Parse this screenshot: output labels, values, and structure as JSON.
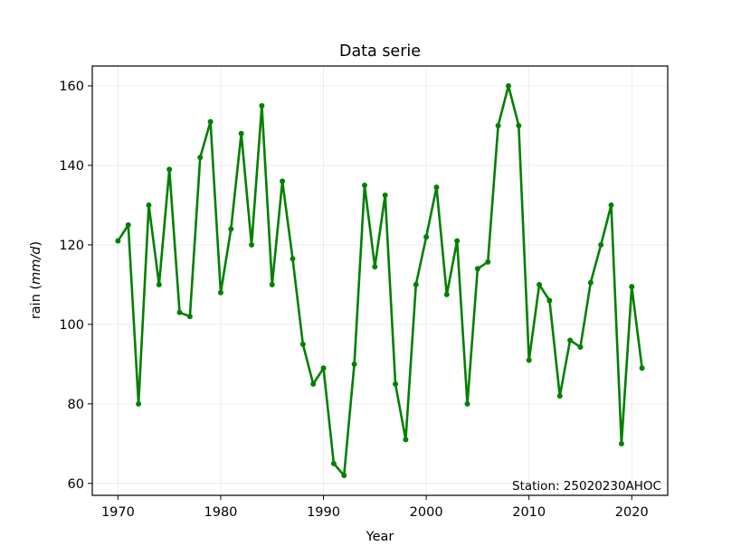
{
  "chart_data": {
    "type": "line",
    "title": "Data serie",
    "xlabel": "Year",
    "ylabel_prefix": "rain (",
    "ylabel_unit": "mm/d",
    "ylabel_suffix": ")",
    "xlim": [
      1967.5,
      2023.5
    ],
    "ylim": [
      57,
      165
    ],
    "x_ticks": [
      1970,
      1980,
      1990,
      2000,
      2010,
      2020
    ],
    "y_ticks": [
      60,
      80,
      100,
      120,
      140,
      160
    ],
    "grid": true,
    "annotation": "Station: 25020230AHOC",
    "line_color": "#008000",
    "series": [
      {
        "x": [
          1970,
          1971,
          1972,
          1973,
          1974,
          1975,
          1976,
          1977,
          1978,
          1979,
          1980,
          1981,
          1982,
          1983,
          1984,
          1985,
          1986,
          1987,
          1988,
          1989,
          1990,
          1991,
          1992,
          1993,
          1994,
          1995,
          1996,
          1997,
          1998,
          1999,
          2000,
          2001,
          2002,
          2003,
          2004,
          2005,
          2006,
          2007,
          2008,
          2009,
          2010,
          2011,
          2012,
          2013,
          2014,
          2015,
          2016,
          2017,
          2018,
          2019,
          2020,
          2021
        ],
        "values": [
          121,
          125,
          80,
          130,
          110,
          139,
          103,
          102,
          142,
          151,
          108,
          124,
          148,
          120,
          155,
          110,
          136,
          116.5,
          95,
          85,
          89,
          65,
          62,
          90,
          135,
          114.5,
          132.5,
          85,
          71,
          110,
          122,
          134.5,
          107.5,
          121,
          80,
          114,
          115.7,
          150,
          160,
          150,
          91,
          110,
          106,
          82,
          96,
          94.3,
          110.5,
          120,
          130,
          70,
          109.5,
          89
        ]
      }
    ]
  }
}
